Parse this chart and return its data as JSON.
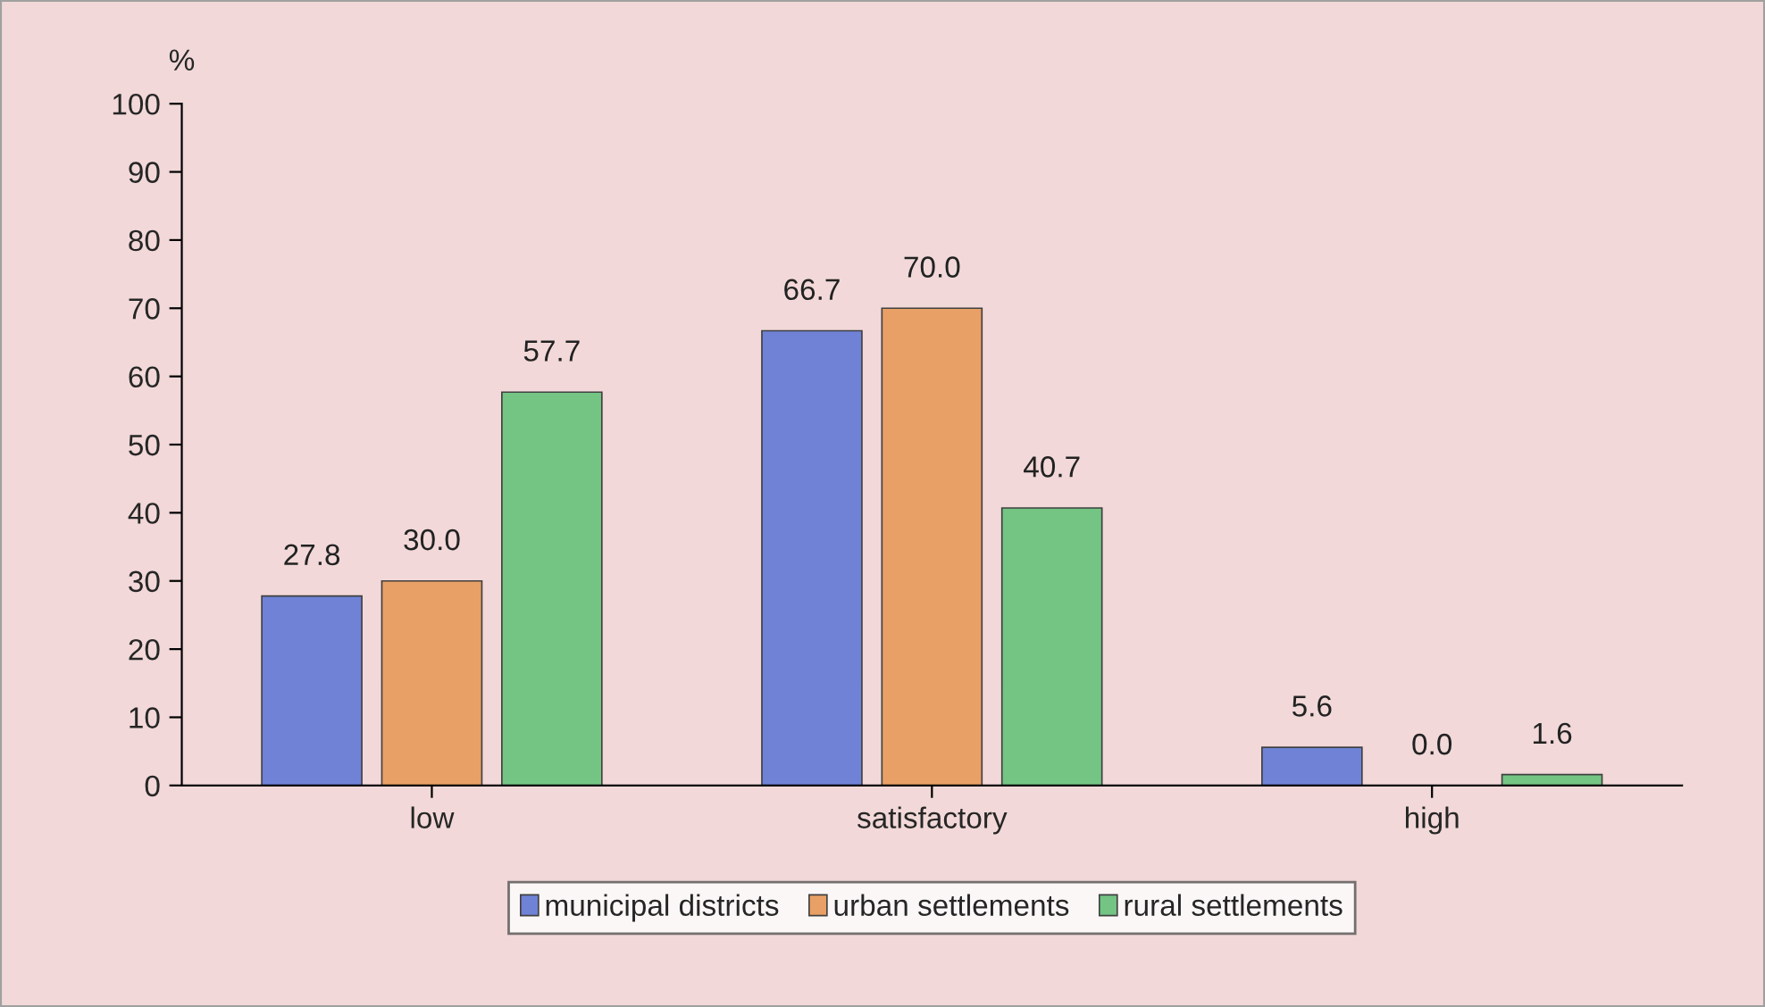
{
  "chart_data": {
    "type": "bar",
    "ylabel": "%",
    "categories": [
      "low",
      "satisfactory",
      "high"
    ],
    "series": [
      {
        "name": "municipal districts",
        "color": "#6f82d6",
        "values": [
          27.8,
          66.7,
          5.6
        ],
        "value_labels": [
          "27.8",
          "66.7",
          "5.6"
        ]
      },
      {
        "name": "urban settlements",
        "color": "#e8a066",
        "values": [
          30.0,
          70.0,
          0.0
        ],
        "value_labels": [
          "30.0",
          "70.0",
          "0.0"
        ]
      },
      {
        "name": "rural settlements",
        "color": "#74c484",
        "values": [
          57.7,
          40.7,
          1.6
        ],
        "value_labels": [
          "57.7",
          "40.7",
          "1.6"
        ]
      }
    ],
    "ylim": [
      0,
      100
    ],
    "yticks": [
      0,
      10,
      20,
      30,
      40,
      50,
      60,
      70,
      80,
      90,
      100
    ],
    "grid": false,
    "legend": "bottom"
  }
}
